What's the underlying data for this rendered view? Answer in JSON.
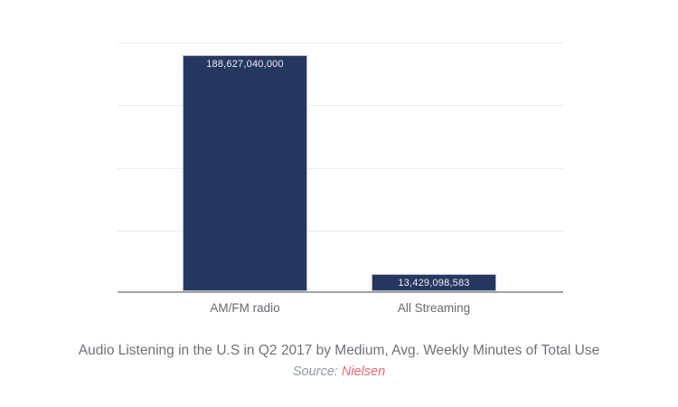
{
  "page": {
    "background": "#ffffff"
  },
  "chart": {
    "title": "Audio Listening in the U.S in Q2 2017 by Medium, Avg. Weekly Minutes of Total Use",
    "source_prefix": "Source: ",
    "source_name": "Nielsen",
    "colors": {
      "bar": "#263760",
      "bar_value_text": "#eef1f6",
      "gridline": "#ececec",
      "axis_line": "#a3a3a3",
      "label_text": "#65696e",
      "title_text": "#6e7278",
      "source_text": "#9097a0",
      "source_link": "#e66a76"
    }
  },
  "chart_data": {
    "type": "bar",
    "categories": [
      "AM/FM radio",
      "All Streaming"
    ],
    "values": [
      188627040000,
      13429098583
    ],
    "value_labels": [
      "188,627,040,000",
      "13,429,098,583"
    ],
    "value_labels_position": "inside-top",
    "title": "Audio Listening in the U.S in Q2 2017 by Medium, Avg. Weekly Minutes of Total Use",
    "source": "Source: Nielsen",
    "xlabel": "",
    "ylabel": "",
    "ylim": [
      0,
      200000000000
    ],
    "gridline_interval": 50000000000,
    "grid": true,
    "legend": false,
    "y_tick_labels_visible": false,
    "bar_color": "#263760"
  }
}
